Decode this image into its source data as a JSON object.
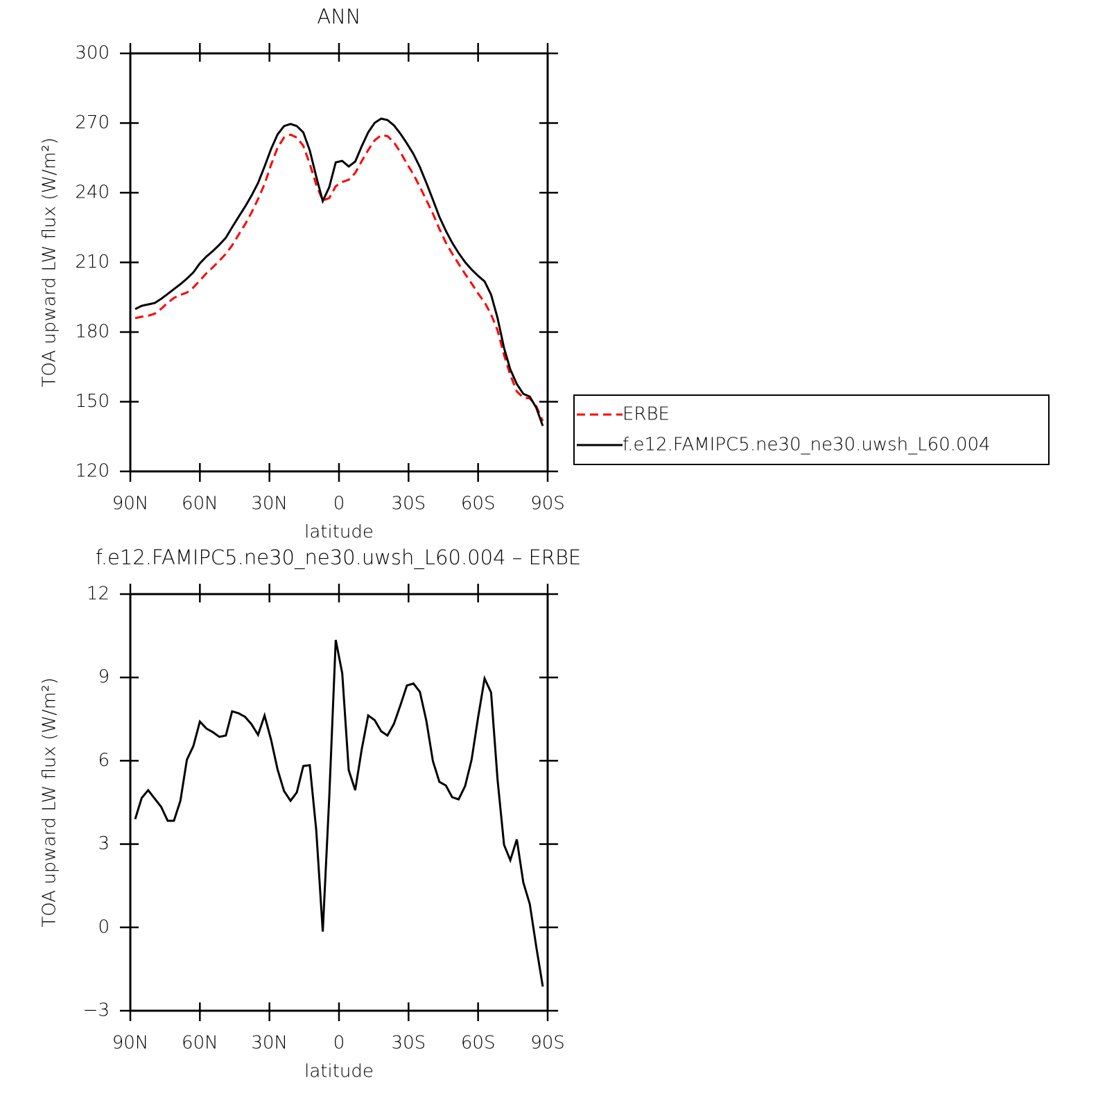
{
  "chart_data": [
    {
      "type": "line",
      "title": "ANN",
      "xlabel": "latitude",
      "ylabel": "TOA upward LW flux (W/m²)",
      "x": [
        87.9,
        85.1,
        82.3,
        79.5,
        76.7,
        73.9,
        71.2,
        68.4,
        65.6,
        62.8,
        60.0,
        57.2,
        54.4,
        51.6,
        48.8,
        46.1,
        43.3,
        40.5,
        37.7,
        34.9,
        32.1,
        29.3,
        26.5,
        23.7,
        20.9,
        18.2,
        15.4,
        12.6,
        9.8,
        7.0,
        4.2,
        1.4,
        -1.4,
        -4.2,
        -7.0,
        -9.8,
        -12.6,
        -15.4,
        -18.2,
        -20.9,
        -23.7,
        -26.5,
        -29.3,
        -32.1,
        -34.9,
        -37.7,
        -40.5,
        -43.3,
        -46.1,
        -48.8,
        -51.6,
        -54.4,
        -57.2,
        -60.0,
        -62.8,
        -65.6,
        -68.4,
        -71.2,
        -73.9,
        -76.7,
        -79.5,
        -82.3,
        -85.1,
        -87.9
      ],
      "xlim": [
        90,
        -90
      ],
      "xticks": [
        {
          "value": 90,
          "label": "90N"
        },
        {
          "value": 60,
          "label": "60N"
        },
        {
          "value": 30,
          "label": "30N"
        },
        0,
        {
          "value": -30,
          "label": "30S"
        },
        {
          "value": -60,
          "label": "60S"
        },
        {
          "value": -90,
          "label": "90S"
        }
      ],
      "ylim": [
        120,
        300
      ],
      "yticks": [
        120,
        150,
        180,
        210,
        240,
        270,
        300
      ],
      "legend": "outside right",
      "series": [
        {
          "name": "ERBE",
          "color": "#ff0000",
          "linestyle": "dashed",
          "values": [
            186.0,
            186.6,
            187.0,
            187.9,
            190.0,
            192.6,
            194.7,
            196.0,
            197.0,
            199.2,
            202.2,
            205.3,
            207.9,
            210.7,
            213.7,
            217.3,
            221.9,
            226.4,
            231.5,
            237.3,
            243.7,
            252.0,
            259.4,
            263.8,
            265.0,
            263.8,
            260.2,
            252.4,
            243.4,
            236.6,
            237.7,
            242.8,
            244.6,
            245.6,
            248.5,
            253.6,
            258.4,
            262.6,
            264.8,
            264.4,
            261.7,
            257.4,
            252.5,
            247.9,
            242.5,
            236.8,
            231.0,
            224.4,
            218.5,
            213.8,
            209.4,
            205.0,
            200.9,
            196.6,
            192.8,
            187.6,
            180.7,
            170.1,
            161.5,
            154.4,
            151.8,
            151.4,
            148.1,
            141.7
          ]
        },
        {
          "name": "f.e12.FAMIPC5.ne30_ne30.uwsh_L60.004",
          "color": "#000000",
          "linestyle": "solid",
          "values": [
            189.9,
            191.3,
            191.9,
            192.5,
            194.3,
            196.4,
            198.5,
            200.6,
            203.0,
            205.7,
            209.6,
            212.5,
            214.9,
            217.6,
            220.6,
            225.1,
            229.6,
            234.0,
            238.8,
            244.2,
            251.3,
            258.8,
            265.1,
            268.7,
            269.6,
            268.7,
            266.0,
            258.2,
            246.9,
            236.4,
            242.4,
            253.1,
            253.7,
            251.3,
            253.4,
            260.0,
            266.0,
            270.1,
            271.9,
            271.3,
            269.0,
            265.4,
            261.2,
            256.7,
            251.0,
            244.2,
            237.0,
            229.6,
            223.6,
            218.5,
            214.0,
            210.1,
            206.9,
            204.2,
            201.8,
            196.1,
            186.0,
            173.1,
            163.9,
            157.6,
            153.4,
            152.2,
            147.4,
            139.6
          ]
        }
      ]
    },
    {
      "type": "line",
      "title": "f.e12.FAMIPC5.ne30_ne30.uwsh_L60.004 – ERBE",
      "xlabel": "latitude",
      "ylabel": "TOA upward LW flux (W/m²)",
      "x": [
        87.9,
        85.1,
        82.3,
        79.5,
        76.7,
        73.9,
        71.2,
        68.4,
        65.6,
        62.8,
        60.0,
        57.2,
        54.4,
        51.6,
        48.8,
        46.1,
        43.3,
        40.5,
        37.7,
        34.9,
        32.1,
        29.3,
        26.5,
        23.7,
        20.9,
        18.2,
        15.4,
        12.6,
        9.8,
        7.0,
        4.2,
        1.4,
        -1.4,
        -4.2,
        -7.0,
        -9.8,
        -12.6,
        -15.4,
        -18.2,
        -20.9,
        -23.7,
        -26.5,
        -29.3,
        -32.1,
        -34.9,
        -37.7,
        -40.5,
        -43.3,
        -46.1,
        -48.8,
        -51.6,
        -54.4,
        -57.2,
        -60.0,
        -62.8,
        -65.6,
        -68.4,
        -71.2,
        -73.9,
        -76.7,
        -79.5,
        -82.3,
        -85.1,
        -87.9
      ],
      "xlim": [
        90,
        -90
      ],
      "xticks": [
        {
          "value": 90,
          "label": "90N"
        },
        {
          "value": 60,
          "label": "60N"
        },
        {
          "value": 30,
          "label": "30N"
        },
        0,
        {
          "value": -30,
          "label": "30S"
        },
        {
          "value": -60,
          "label": "60S"
        },
        {
          "value": -90,
          "label": "90S"
        }
      ],
      "ylim": [
        -3,
        12
      ],
      "yticks": [
        {
          "value": -3,
          "label": "−3"
        },
        0,
        3,
        6,
        9,
        12
      ],
      "series": [
        {
          "color": "#000000",
          "linestyle": "solid",
          "values": [
            3.9,
            4.66,
            4.94,
            4.64,
            4.34,
            3.84,
            3.84,
            4.56,
            6.04,
            6.53,
            7.41,
            7.16,
            7.03,
            6.86,
            6.91,
            7.78,
            7.71,
            7.58,
            7.31,
            6.93,
            7.63,
            6.76,
            5.69,
            4.91,
            4.56,
            4.86,
            5.81,
            5.84,
            3.49,
            -0.15,
            4.69,
            10.35,
            9.15,
            5.66,
            4.94,
            6.41,
            7.63,
            7.46,
            7.06,
            6.91,
            7.33,
            8.0,
            8.71,
            8.78,
            8.48,
            7.43,
            5.99,
            5.24,
            5.11,
            4.69,
            4.61,
            5.09,
            6.04,
            7.56,
            8.96,
            8.46,
            5.31,
            2.97,
            2.42,
            3.17,
            1.62,
            0.84,
            -0.7,
            -2.13
          ]
        }
      ]
    }
  ]
}
